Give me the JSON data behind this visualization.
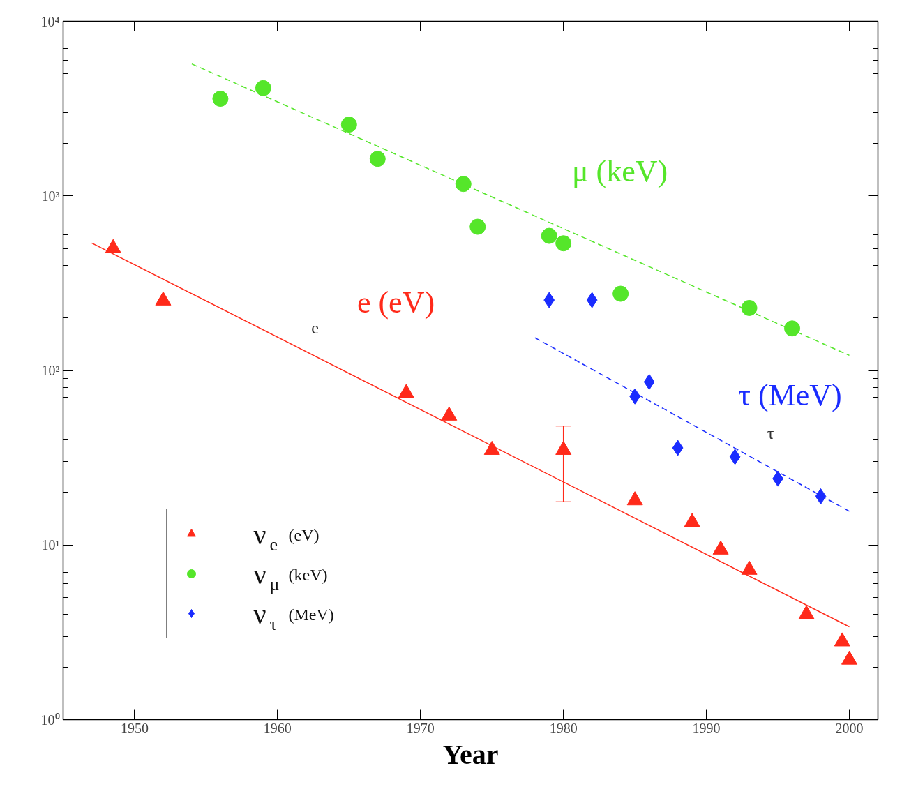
{
  "chart_data": {
    "type": "scatter",
    "xlabel": "Year",
    "log": "y",
    "xlim": [
      1945,
      2002
    ],
    "xticks": [
      1950,
      1960,
      1970,
      1980,
      1990,
      2000
    ],
    "ylim": [
      1,
      10000
    ],
    "yticks": [
      {
        "value": 1,
        "label": "10⁰"
      },
      {
        "value": 10,
        "label": "10¹"
      },
      {
        "value": 100,
        "label": "10²"
      },
      {
        "value": 1000,
        "label": "10³"
      },
      {
        "value": 10000,
        "label": "10⁴"
      }
    ],
    "grid": false,
    "legend": "bottom left",
    "series": [
      {
        "name": "ν$_{e}$ (eV)",
        "color": "#ff2a1a",
        "marker": "triangle",
        "x": [
          1948.5,
          1952,
          1969,
          1972,
          1975,
          1980,
          1985,
          1989,
          1991,
          1993,
          1997,
          1999.5,
          2000
        ],
        "values": [
          501,
          251,
          74,
          55,
          35,
          35,
          18,
          13.5,
          9.4,
          7.2,
          4.0,
          2.8,
          2.2
        ],
        "errors": [
          null,
          null,
          null,
          null,
          null,
          [
            17.7,
            48
          ],
          null,
          null,
          null,
          null,
          null,
          null,
          null
        ]
      },
      {
        "name": "ν$_{μ}$ (keV)",
        "color": "#55e62a",
        "marker": "circle",
        "x": [
          1956,
          1959,
          1965,
          1967,
          1973,
          1974,
          1979,
          1980,
          1984,
          1993,
          1996
        ],
        "values": [
          3600,
          4140,
          2560,
          1630,
          1170,
          665,
          590,
          535,
          275,
          228,
          174
        ]
      },
      {
        "name": "ν$_{τ}$ (MeV)",
        "color": "#1a2cff",
        "marker": "diamond",
        "x": [
          1979,
          1982,
          1985,
          1986,
          1988,
          1992,
          1995,
          1998
        ],
        "values": [
          253,
          253,
          71,
          86,
          36,
          32,
          24,
          19
        ]
      },
      {
        "type": "line",
        "color": "#ff2a1a",
        "line_style": "solid",
        "x": [
          1947,
          2000
        ],
        "values": [
          537,
          3.4
        ]
      },
      {
        "type": "line",
        "color": "#55e62a",
        "line_style": "dashed",
        "x": [
          1954,
          2000
        ],
        "values": [
          5700,
          122
        ]
      },
      {
        "type": "line",
        "color": "#1a2cff",
        "line_style": "dashed",
        "x": [
          1978,
          2000
        ],
        "values": [
          154,
          15.6
        ]
      }
    ],
    "annotations": [
      "e (eV)",
      "μ (keV)",
      "τ (MeV)",
      "e",
      "τ"
    ]
  }
}
